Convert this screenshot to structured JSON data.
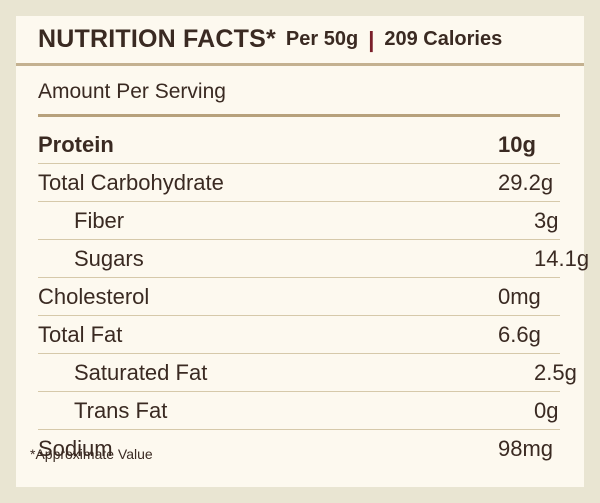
{
  "header": {
    "title": "NUTRITION FACTS*",
    "per": "Per 50g",
    "separator": "|",
    "calories": "209 Calories"
  },
  "amount_label": "Amount Per Serving",
  "rows": [
    {
      "label": "Protein",
      "value": "10g"
    },
    {
      "label": "Total Carbohydrate",
      "value": "29.2g"
    },
    {
      "label": "Fiber",
      "value": "3g"
    },
    {
      "label": "Sugars",
      "value": "14.1g"
    },
    {
      "label": "Cholesterol",
      "value": "0mg"
    },
    {
      "label": "Total Fat",
      "value": "6.6g"
    },
    {
      "label": "Saturated Fat",
      "value": "2.5g"
    },
    {
      "label": "Trans Fat",
      "value": "0g"
    },
    {
      "label": "Sodium",
      "value": "98mg"
    }
  ],
  "footnote": "*Approximate Value",
  "colors": {
    "background": "#e9e5d2",
    "card": "#fdf9ef",
    "text": "#3a2a22",
    "accent": "#7a1f2a",
    "rule": "#b7a17c"
  }
}
